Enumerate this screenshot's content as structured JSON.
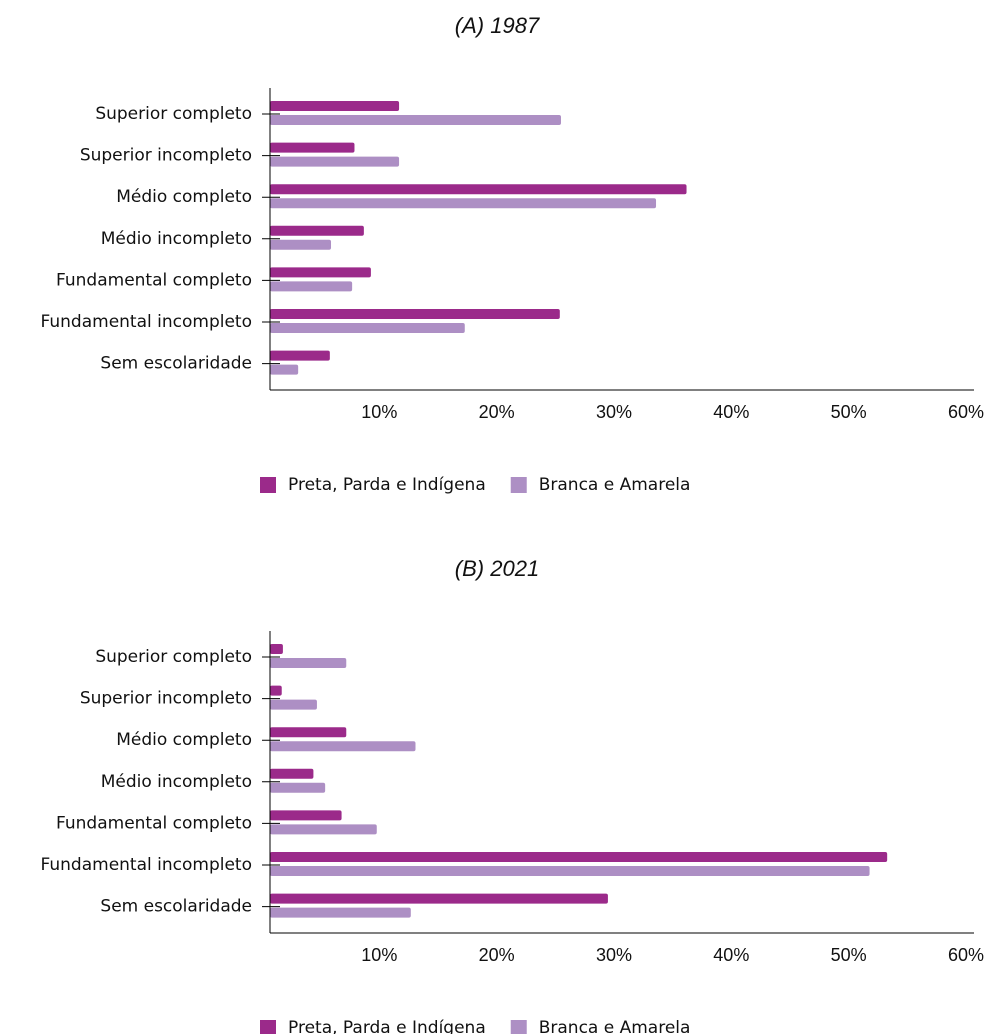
{
  "chart_data": [
    {
      "type": "barh",
      "title": "(A) 1987",
      "categories": [
        "Superior completo",
        "Superior incompleto",
        "Médio completo",
        "Médio incompleto",
        "Fundamental completo",
        "Fundamental incompleto",
        "Sem escolaridade"
      ],
      "series": [
        {
          "name": "Preta, Parda e Indígena",
          "color": "#9b2a8a",
          "values": [
            11.0,
            7.2,
            35.5,
            8.0,
            8.6,
            24.7,
            5.1
          ]
        },
        {
          "name": "Branca e Amarela",
          "color": "#ad8fc4",
          "values": [
            24.8,
            11.0,
            32.9,
            5.2,
            7.0,
            16.6,
            2.4
          ]
        }
      ],
      "xlim": [
        0,
        60
      ],
      "xticks": [
        {
          "value": 10,
          "label": "10%"
        },
        {
          "value": 20,
          "label": "20%"
        },
        {
          "value": 30,
          "label": "30%"
        },
        {
          "value": 40,
          "label": "40%"
        },
        {
          "value": 50,
          "label": "50%"
        },
        {
          "value": 60,
          "label": "60%"
        }
      ],
      "legend": "bottom"
    },
    {
      "type": "barh",
      "title": "(B) 2021",
      "categories": [
        "Superior completo",
        "Superior incompleto",
        "Médio completo",
        "Médio incompleto",
        "Fundamental completo",
        "Fundamental incompleto",
        "Sem escolaridade"
      ],
      "series": [
        {
          "name": "Preta, Parda e Indígena",
          "color": "#9b2a8a",
          "values": [
            1.1,
            1.0,
            6.5,
            3.7,
            6.1,
            52.6,
            28.8
          ]
        },
        {
          "name": "Branca e Amarela",
          "color": "#ad8fc4",
          "values": [
            6.5,
            4.0,
            12.4,
            4.7,
            9.1,
            51.1,
            12.0
          ]
        }
      ],
      "xlim": [
        0,
        60
      ],
      "xticks": [
        {
          "value": 10,
          "label": "10%"
        },
        {
          "value": 20,
          "label": "20%"
        },
        {
          "value": 30,
          "label": "30%"
        },
        {
          "value": 40,
          "label": "40%"
        },
        {
          "value": 50,
          "label": "50%"
        },
        {
          "value": 60,
          "label": "60%"
        }
      ],
      "legend": "bottom"
    }
  ]
}
